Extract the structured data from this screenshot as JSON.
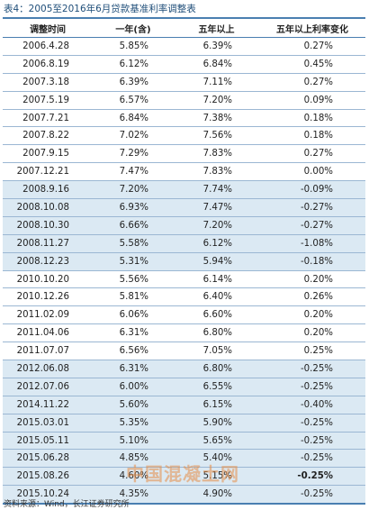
{
  "title": "表4：2005至2016年6月贷款基准利率调整表",
  "headers": [
    "调整时间",
    "一年(含)",
    "五年以上",
    "五年以上利率变化"
  ],
  "rows": [
    {
      "date": "2006.4.28",
      "one_year": "5.85%",
      "five_year": "6.39%",
      "change": "0.27%",
      "shaded": false
    },
    {
      "date": "2006.8.19",
      "one_year": "6.12%",
      "five_year": "6.84%",
      "change": "0.45%",
      "shaded": false
    },
    {
      "date": "2007.3.18",
      "one_year": "6.39%",
      "five_year": "7.11%",
      "change": "0.27%",
      "shaded": false
    },
    {
      "date": "2007.5.19",
      "one_year": "6.57%",
      "five_year": "7.20%",
      "change": "0.09%",
      "shaded": false
    },
    {
      "date": "2007.7.21",
      "one_year": "6.84%",
      "five_year": "7.38%",
      "change": "0.18%",
      "shaded": false
    },
    {
      "date": "2007.8.22",
      "one_year": "7.02%",
      "five_year": "7.56%",
      "change": "0.18%",
      "shaded": false
    },
    {
      "date": "2007.9.15",
      "one_year": "7.29%",
      "five_year": "7.83%",
      "change": "0.27%",
      "shaded": false
    },
    {
      "date": "2007.12.21",
      "one_year": "7.47%",
      "five_year": "7.83%",
      "change": "0.00%",
      "shaded": false
    },
    {
      "date": "2008.9.16",
      "one_year": "7.20%",
      "five_year": "7.74%",
      "change": "-0.09%",
      "shaded": true
    },
    {
      "date": "2008.10.08",
      "one_year": "6.93%",
      "five_year": "7.47%",
      "change": "-0.27%",
      "shaded": true
    },
    {
      "date": "2008.10.30",
      "one_year": "6.66%",
      "five_year": "7.20%",
      "change": "-0.27%",
      "shaded": true
    },
    {
      "date": "2008.11.27",
      "one_year": "5.58%",
      "five_year": "6.12%",
      "change": "-1.08%",
      "shaded": true
    },
    {
      "date": "2008.12.23",
      "one_year": "5.31%",
      "five_year": "5.94%",
      "change": "-0.18%",
      "shaded": true
    },
    {
      "date": "2010.10.20",
      "one_year": "5.56%",
      "five_year": "6.14%",
      "change": "0.20%",
      "shaded": false
    },
    {
      "date": "2010.12.26",
      "one_year": "5.81%",
      "five_year": "6.40%",
      "change": "0.26%",
      "shaded": false
    },
    {
      "date": "2011.02.09",
      "one_year": "6.06%",
      "five_year": "6.60%",
      "change": "0.20%",
      "shaded": false
    },
    {
      "date": "2011.04.06",
      "one_year": "6.31%",
      "five_year": "6.80%",
      "change": "0.20%",
      "shaded": false
    },
    {
      "date": "2011.07.07",
      "one_year": "6.56%",
      "five_year": "7.05%",
      "change": "0.25%",
      "shaded": false
    },
    {
      "date": "2012.06.08",
      "one_year": "6.31%",
      "five_year": "6.80%",
      "change": "-0.25%",
      "shaded": true
    },
    {
      "date": "2012.07.06",
      "one_year": "6.00%",
      "five_year": "6.55%",
      "change": "-0.25%",
      "shaded": true
    },
    {
      "date": "2014.11.22",
      "one_year": "5.60%",
      "five_year": "6.15%",
      "change": "-0.40%",
      "shaded": true
    },
    {
      "date": "2015.03.01",
      "one_year": "5.35%",
      "five_year": "5.90%",
      "change": "-0.25%",
      "shaded": true
    },
    {
      "date": "2015.05.11",
      "one_year": "5.10%",
      "five_year": "5.65%",
      "change": "-0.25%",
      "shaded": true
    },
    {
      "date": "2015.06.28",
      "one_year": "4.85%",
      "five_year": "5.40%",
      "change": "-0.25%",
      "shaded": true
    },
    {
      "date": "2015.08.26",
      "one_year": "4.60%",
      "five_year": "5.15%",
      "change": "-0.25%",
      "shaded": true,
      "bold_change": true
    },
    {
      "date": "2015.10.24",
      "one_year": "4.35%",
      "five_year": "4.90%",
      "change": "-0.25%",
      "shaded": true
    }
  ],
  "source": "资料来源：Wind，长江证券研究所",
  "watermark": "中国混凝土网",
  "colors": {
    "title": "#1f4e79",
    "rule": "#4a7fb1",
    "shade": "#dbe9f3"
  }
}
